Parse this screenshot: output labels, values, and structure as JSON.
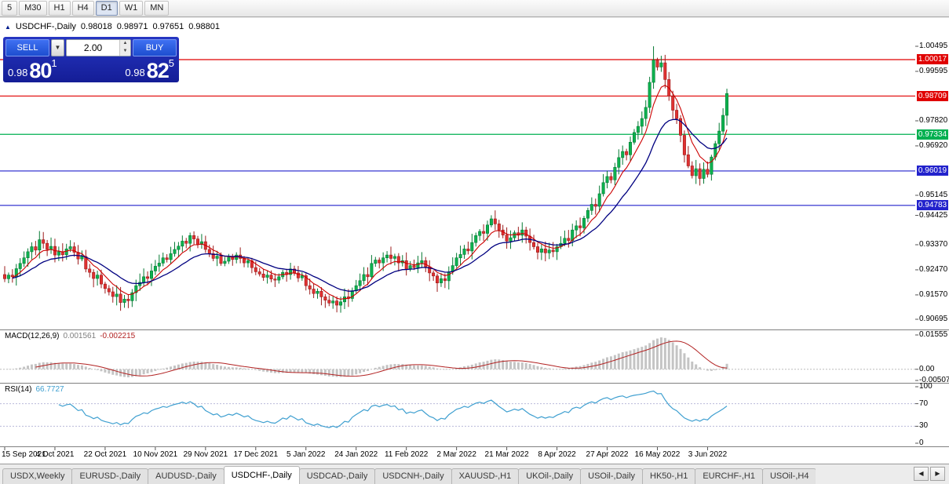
{
  "toolbar": {
    "timeframes": [
      "5",
      "M30",
      "H1",
      "H4",
      "D1",
      "W1",
      "MN"
    ],
    "active": "D1"
  },
  "chart": {
    "symbol": "USDCHF-,Daily",
    "open": "0.98018",
    "high": "0.98971",
    "low": "0.97651",
    "close": "0.98801"
  },
  "trade_panel": {
    "sell_label": "SELL",
    "buy_label": "BUY",
    "volume": "2.00",
    "sell_price": {
      "base": "0.98",
      "big": "80",
      "sup": "1"
    },
    "buy_price": {
      "base": "0.98",
      "big": "82",
      "sup": "5"
    }
  },
  "indicators": {
    "macd_label": "MACD(12,26,9)",
    "macd_main_value": "0.001561",
    "macd_signal_value": "-0.002215",
    "rsi_label": "RSI(14)",
    "rsi_value": "66.7727"
  },
  "price_axis": {
    "labels": [
      {
        "text": "1.00495"
      },
      {
        "text": "0.99595"
      },
      {
        "text": "0.97820"
      },
      {
        "text": "0.96920"
      },
      {
        "text": "0.95145"
      },
      {
        "text": "0.94425"
      },
      {
        "text": "0.93370"
      },
      {
        "text": "0.92470"
      },
      {
        "text": "0.91570"
      },
      {
        "text": "0.90695"
      }
    ],
    "badges": [
      {
        "text": "1.00017",
        "color": "#e00000"
      },
      {
        "text": "0.98709",
        "color": "#e00000"
      },
      {
        "text": "0.97334",
        "color": "#00b050"
      },
      {
        "text": "0.96019",
        "color": "#2222cc"
      },
      {
        "text": "0.94783",
        "color": "#2222cc"
      }
    ]
  },
  "macd_axis": [
    {
      "text": "0.01555"
    },
    {
      "text": "0.00"
    },
    {
      "text": "-0.00507"
    }
  ],
  "rsi_axis": [
    {
      "text": "100"
    },
    {
      "text": "70"
    },
    {
      "text": "30"
    },
    {
      "text": "0"
    }
  ],
  "dates": [
    {
      "text": "15 Sep 2021",
      "i": 0
    },
    {
      "text": "4 Oct 2021",
      "i": 13
    },
    {
      "text": "22 Oct 2021",
      "i": 26
    },
    {
      "text": "10 Nov 2021",
      "i": 39
    },
    {
      "text": "29 Nov 2021",
      "i": 52
    },
    {
      "text": "17 Dec 2021",
      "i": 65
    },
    {
      "text": "5 Jan 2022",
      "i": 78
    },
    {
      "text": "24 Jan 2022",
      "i": 91
    },
    {
      "text": "11 Feb 2022",
      "i": 104
    },
    {
      "text": "2 Mar 2022",
      "i": 117
    },
    {
      "text": "21 Mar 2022",
      "i": 130
    },
    {
      "text": "8 Apr 2022",
      "i": 143
    },
    {
      "text": "27 Apr 2022",
      "i": 156
    },
    {
      "text": "16 May 2022",
      "i": 169
    },
    {
      "text": "3 Jun 2022",
      "i": 182
    }
  ],
  "tabbar": {
    "tabs": [
      "USDX,Weekly",
      "EURUSD-,Daily",
      "AUDUSD-,Daily",
      "USDCHF-,Daily",
      "USDCAD-,Daily",
      "USDCNH-,Daily",
      "XAUUSD-,H1",
      "UKOil-,Daily",
      "USOil-,Daily",
      "HK50-,H1",
      "EURCHF-,H1",
      "USOil-,H4"
    ],
    "active_index": 3,
    "scroll_left": "◀",
    "scroll_right": "▶"
  },
  "colors": {
    "up": "#0db24f",
    "up_stroke": "#067a34",
    "down": "#e03131",
    "down_stroke": "#9c1c1c",
    "ma_fast": "#cc0000",
    "ma_slow": "#000080",
    "macd_hist": "#c4c4c4",
    "macd_signal": "#b22222",
    "rsi_line": "#3e9fd0",
    "panel_blue": "#1c2bb0",
    "button_blue": "#2d5fe0"
  },
  "chart_data": {
    "type": "candlestick",
    "symbol": "USDCHF",
    "timeframe": "Daily",
    "title": "USDCHF-,Daily 0.98018 0.98971 0.97651 0.98801",
    "x_range": [
      "15 Sep 2021",
      "3 Jun 2022"
    ],
    "y_range": [
      0.90695,
      1.00495
    ],
    "levels": [
      1.00017,
      0.98709,
      0.97334,
      0.96019,
      0.94783
    ],
    "peak_high": 1.00495,
    "last_candle": {
      "open": 0.98018,
      "high": 0.98971,
      "low": 0.97651,
      "close": 0.98801
    },
    "closes": [
      0.9215,
      0.9228,
      0.9222,
      0.9251,
      0.927,
      0.929,
      0.9312,
      0.933,
      0.9318,
      0.9355,
      0.9342,
      0.932,
      0.9331,
      0.93,
      0.9312,
      0.9301,
      0.9322,
      0.933,
      0.931,
      0.9286,
      0.9295,
      0.925,
      0.9238,
      0.9216,
      0.9228,
      0.9196,
      0.918,
      0.9168,
      0.9151,
      0.916,
      0.913,
      0.9142,
      0.9136,
      0.9165,
      0.919,
      0.9202,
      0.9222,
      0.9216,
      0.9243,
      0.926,
      0.9271,
      0.929,
      0.9284,
      0.9305,
      0.932,
      0.9332,
      0.935,
      0.9342,
      0.937,
      0.9358,
      0.9338,
      0.9348,
      0.932,
      0.9305,
      0.9288,
      0.9296,
      0.927,
      0.9278,
      0.9292,
      0.9284,
      0.93,
      0.9288,
      0.9272,
      0.928,
      0.9255,
      0.924,
      0.9232,
      0.922,
      0.9228,
      0.9214,
      0.921,
      0.9222,
      0.9238,
      0.923,
      0.925,
      0.9236,
      0.9218,
      0.9226,
      0.919,
      0.9178,
      0.9162,
      0.917,
      0.915,
      0.9138,
      0.9128,
      0.9135,
      0.912,
      0.9132,
      0.915,
      0.9144,
      0.9172,
      0.919,
      0.9208,
      0.923,
      0.9222,
      0.927,
      0.9282,
      0.9272,
      0.929,
      0.93,
      0.9288,
      0.9295,
      0.9272,
      0.928,
      0.925,
      0.9262,
      0.9255,
      0.9272,
      0.928,
      0.9258,
      0.9236,
      0.9225,
      0.92,
      0.9215,
      0.9208,
      0.924,
      0.9262,
      0.929,
      0.9302,
      0.9322,
      0.9315,
      0.9345,
      0.937,
      0.9385,
      0.9378,
      0.9408,
      0.943,
      0.9412,
      0.939,
      0.9372,
      0.935,
      0.9362,
      0.938,
      0.9371,
      0.939,
      0.9368,
      0.9345,
      0.933,
      0.931,
      0.9322,
      0.9308,
      0.9318,
      0.9312,
      0.933,
      0.9342,
      0.936,
      0.9352,
      0.939,
      0.9405,
      0.9398,
      0.9432,
      0.946,
      0.9482,
      0.9475,
      0.952,
      0.956,
      0.9582,
      0.957,
      0.9615,
      0.965,
      0.9672,
      0.966,
      0.9705,
      0.974,
      0.9762,
      0.979,
      0.983,
      0.992,
      1.0,
      0.9975,
      0.999,
      0.993,
      0.987,
      0.982,
      0.979,
      0.973,
      0.966,
      0.962,
      0.9585,
      0.961,
      0.9575,
      0.9608,
      0.959,
      0.9652,
      0.97,
      0.9745,
      0.98018,
      0.98801
    ],
    "indicators": {
      "macd": {
        "params": "12,26,9",
        "main": 0.001561,
        "signal": -0.002215,
        "axis": [
          0.01555,
          0,
          -0.00507
        ]
      },
      "rsi": {
        "params": "14",
        "value": 66.7727,
        "levels": [
          70,
          30
        ],
        "axis": [
          100,
          70,
          30,
          0
        ]
      }
    }
  }
}
